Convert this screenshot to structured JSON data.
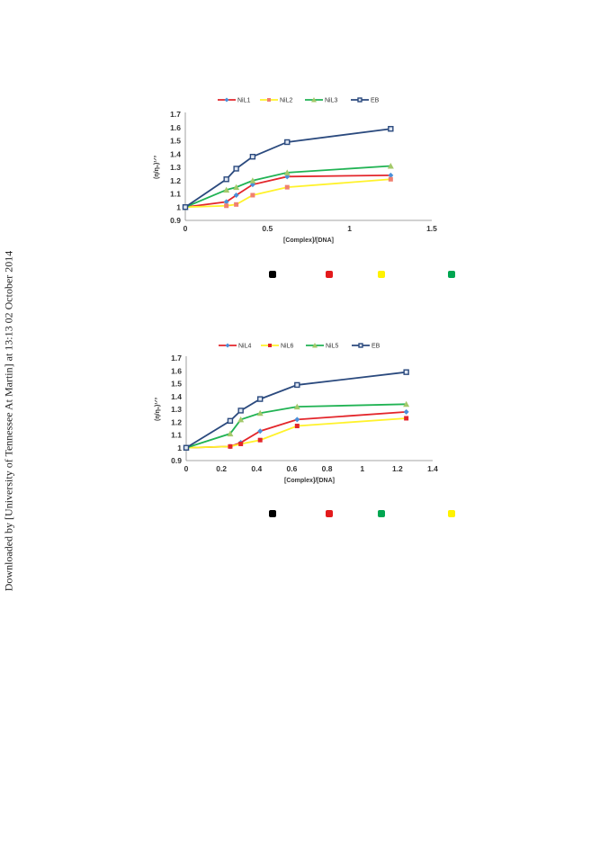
{
  "watermark": "Downloaded by [University of Tennessee At Martin] at 13:13 02 October 2014",
  "chart_data": [
    {
      "type": "line",
      "title": "",
      "xlabel": "[Complex]/[DNA]",
      "ylabel": "(η/η₀)¹ᐟ³",
      "xlim": [
        0,
        1.5
      ],
      "ylim": [
        0.9,
        1.7
      ],
      "xticks": [
        0,
        0.5,
        1,
        1.5
      ],
      "xtick_labels": [
        "0",
        "0.5",
        "1",
        "1.5"
      ],
      "yticks": [
        0.9,
        1,
        1.1,
        1.2,
        1.3,
        1.4,
        1.5,
        1.6,
        1.7
      ],
      "ytick_labels": [
        "0.9",
        "1",
        "1.1",
        "1.2",
        "1.3",
        "1.4",
        "1.5",
        "1.6",
        "1.7"
      ],
      "legend_position": "top",
      "series": [
        {
          "name": "NiL1",
          "line_color": "#e3262b",
          "marker_color": "#4a90d9",
          "marker": "diamond",
          "x": [
            0,
            0.25,
            0.31,
            0.41,
            0.62,
            1.25
          ],
          "y": [
            1.0,
            1.04,
            1.09,
            1.17,
            1.23,
            1.24
          ]
        },
        {
          "name": "NiL2",
          "line_color": "#fff22b",
          "marker_color": "#f08070",
          "marker": "square",
          "x": [
            0,
            0.25,
            0.31,
            0.41,
            0.62,
            1.25
          ],
          "y": [
            1.0,
            1.01,
            1.02,
            1.09,
            1.15,
            1.21
          ]
        },
        {
          "name": "NiL3",
          "line_color": "#21b354",
          "marker_color": "#a3c96a",
          "marker": "triangle",
          "x": [
            0,
            0.25,
            0.31,
            0.41,
            0.62,
            1.25
          ],
          "y": [
            1.0,
            1.13,
            1.15,
            1.2,
            1.26,
            1.31
          ]
        },
        {
          "name": "EB",
          "line_color": "#2b4a7e",
          "marker_color": "#2b4a7e",
          "marker": "square-open",
          "x": [
            0,
            0.25,
            0.31,
            0.41,
            0.62,
            1.25
          ],
          "y": [
            1.0,
            1.21,
            1.29,
            1.38,
            1.49,
            1.59
          ]
        }
      ],
      "key_swatches": [
        "#000000",
        "#e31a1c",
        "#fff200",
        "#00a651"
      ]
    },
    {
      "type": "line",
      "title": "",
      "xlabel": "[Complex]/[DNA]",
      "ylabel": "(η/η₀)¹ᐟ³",
      "xlim": [
        0,
        1.4
      ],
      "ylim": [
        0.9,
        1.7
      ],
      "xticks": [
        0,
        0.2,
        0.4,
        0.6,
        0.8,
        1,
        1.2,
        1.4
      ],
      "xtick_labels": [
        "0",
        "0.2",
        "0.4",
        "0.6",
        "0.8",
        "1",
        "1.2",
        "1.4"
      ],
      "yticks": [
        0.9,
        1,
        1.1,
        1.2,
        1.3,
        1.4,
        1.5,
        1.6,
        1.7
      ],
      "ytick_labels": [
        "0.9",
        "1",
        "1.1",
        "1.2",
        "1.3",
        "1.4",
        "1.5",
        "1.6",
        "1.7"
      ],
      "legend_position": "top",
      "series": [
        {
          "name": "NiL4",
          "line_color": "#e3262b",
          "marker_color": "#4a90d9",
          "marker": "diamond",
          "x": [
            0,
            0.25,
            0.31,
            0.42,
            0.63,
            1.25
          ],
          "y": [
            1.0,
            1.01,
            1.04,
            1.13,
            1.22,
            1.28
          ]
        },
        {
          "name": "NiL6",
          "line_color": "#fff22b",
          "marker_color": "#e3262b",
          "marker": "square",
          "x": [
            0,
            0.25,
            0.31,
            0.42,
            0.63,
            1.25
          ],
          "y": [
            1.0,
            1.01,
            1.03,
            1.06,
            1.17,
            1.23
          ]
        },
        {
          "name": "NiL5",
          "line_color": "#21b354",
          "marker_color": "#a3c96a",
          "marker": "triangle",
          "x": [
            0,
            0.25,
            0.31,
            0.42,
            0.63,
            1.25
          ],
          "y": [
            1.0,
            1.11,
            1.22,
            1.27,
            1.32,
            1.34
          ]
        },
        {
          "name": "EB",
          "line_color": "#2b4a7e",
          "marker_color": "#2b4a7e",
          "marker": "square-open",
          "x": [
            0,
            0.25,
            0.31,
            0.42,
            0.63,
            1.25
          ],
          "y": [
            1.0,
            1.21,
            1.29,
            1.38,
            1.49,
            1.59
          ]
        }
      ],
      "key_swatches": [
        "#000000",
        "#e31a1c",
        "#00a651",
        "#fff200"
      ]
    }
  ]
}
